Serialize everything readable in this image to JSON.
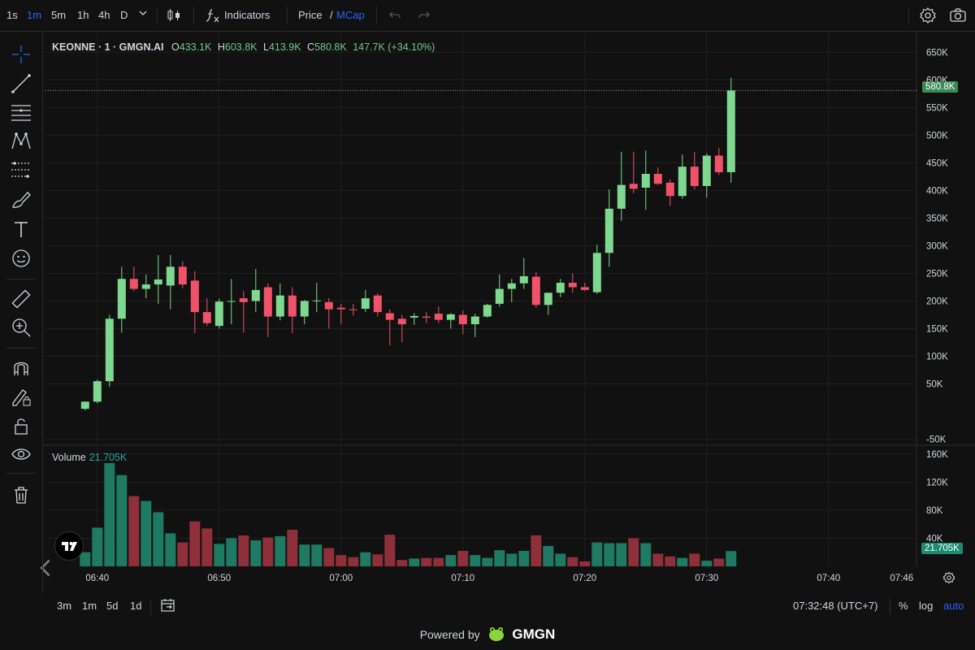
{
  "topbar": {
    "intervals": [
      "1s",
      "1m",
      "5m",
      "1h",
      "4h",
      "D"
    ],
    "active_interval": "1m",
    "indicators_label": "Indicators",
    "price_label": "Price",
    "slash": "/",
    "mcap_label": "MCap"
  },
  "legend": {
    "symbol": "KEONNE · 1 · GMGN.AI",
    "open_k": "O",
    "open_v": "433.1K",
    "high_k": "H",
    "high_v": "603.8K",
    "low_k": "L",
    "low_v": "413.9K",
    "close_k": "C",
    "close_v": "580.8K",
    "change": "147.7K (+34.10%)"
  },
  "volume_legend": {
    "label": "Volume",
    "value": "21.705K"
  },
  "price_tag": "580.8K",
  "volume_tag": "21.705K",
  "bottombar": {
    "ranges": [
      "3m",
      "1m",
      "5d",
      "1d"
    ],
    "clock": "07:32:48 (UTC+7)",
    "percent": "%",
    "log": "log",
    "auto": "auto"
  },
  "footer": {
    "powered": "Powered by",
    "brand": "GMGN"
  },
  "colors": {
    "up": "#7fd88f",
    "down": "#f0526a",
    "vol_up": "#1e7a62",
    "vol_down": "#8e2f3a",
    "accent": "#2962ff"
  },
  "chart_data": {
    "type": "candlestick",
    "price_axis_ticks": [
      "650K",
      "600K",
      "550K",
      "500K",
      "450K",
      "400K",
      "350K",
      "300K",
      "250K",
      "200K",
      "150K",
      "100K",
      "50K",
      "-50K"
    ],
    "volume_axis_ticks": [
      "160K",
      "120K",
      "80K",
      "40K"
    ],
    "time_axis_ticks": [
      "06:40",
      "06:50",
      "07:00",
      "07:10",
      "07:20",
      "07:30",
      "07:40",
      "07:46"
    ],
    "price_ylim": [
      -50000,
      650000
    ],
    "volume_ylim": [
      0,
      160000
    ],
    "last_price": 580800,
    "candles": [
      {
        "t": "06:39",
        "o": 5000,
        "h": 18000,
        "l": 2000,
        "c": 18000,
        "v": 20000
      },
      {
        "t": "06:40",
        "o": 18000,
        "h": 58000,
        "l": 15000,
        "c": 55000,
        "v": 55000
      },
      {
        "t": "06:41",
        "o": 55000,
        "h": 175000,
        "l": 45000,
        "c": 168000,
        "v": 147000
      },
      {
        "t": "06:42",
        "o": 168000,
        "h": 262000,
        "l": 143000,
        "c": 240000,
        "v": 130000
      },
      {
        "t": "06:43",
        "o": 240000,
        "h": 262000,
        "l": 218000,
        "c": 222000,
        "v": 100000
      },
      {
        "t": "06:44",
        "o": 222000,
        "h": 248000,
        "l": 205000,
        "c": 230000,
        "v": 93000
      },
      {
        "t": "06:45",
        "o": 230000,
        "h": 283000,
        "l": 195000,
        "c": 239000,
        "v": 77000
      },
      {
        "t": "06:46",
        "o": 228000,
        "h": 283000,
        "l": 185000,
        "c": 262000,
        "v": 47000
      },
      {
        "t": "06:47",
        "o": 262000,
        "h": 272000,
        "l": 223000,
        "c": 230000,
        "v": 34000
      },
      {
        "t": "06:48",
        "o": 237000,
        "h": 254000,
        "l": 142000,
        "c": 180000,
        "v": 64000
      },
      {
        "t": "06:49",
        "o": 180000,
        "h": 205000,
        "l": 155000,
        "c": 160000,
        "v": 54000
      },
      {
        "t": "06:50",
        "o": 155000,
        "h": 204000,
        "l": 150000,
        "c": 199000,
        "v": 32000
      },
      {
        "t": "06:51",
        "o": 199000,
        "h": 240000,
        "l": 158000,
        "c": 200000,
        "v": 40000
      },
      {
        "t": "06:52",
        "o": 205000,
        "h": 218000,
        "l": 143000,
        "c": 198000,
        "v": 44000
      },
      {
        "t": "06:53",
        "o": 200000,
        "h": 258000,
        "l": 180000,
        "c": 220000,
        "v": 37000
      },
      {
        "t": "06:54",
        "o": 225000,
        "h": 232000,
        "l": 135000,
        "c": 172000,
        "v": 41000
      },
      {
        "t": "06:55",
        "o": 172000,
        "h": 232000,
        "l": 165000,
        "c": 210000,
        "v": 43000
      },
      {
        "t": "06:56",
        "o": 210000,
        "h": 225000,
        "l": 142000,
        "c": 172000,
        "v": 52000
      },
      {
        "t": "06:57",
        "o": 172000,
        "h": 202000,
        "l": 158000,
        "c": 200000,
        "v": 31000
      },
      {
        "t": "06:58",
        "o": 200000,
        "h": 233000,
        "l": 180000,
        "c": 201000,
        "v": 31000
      },
      {
        "t": "06:59",
        "o": 198000,
        "h": 205000,
        "l": 150000,
        "c": 185000,
        "v": 26000
      },
      {
        "t": "07:00",
        "o": 188000,
        "h": 195000,
        "l": 158000,
        "c": 185000,
        "v": 16000
      },
      {
        "t": "07:01",
        "o": 185000,
        "h": 195000,
        "l": 174000,
        "c": 184000,
        "v": 13000
      },
      {
        "t": "07:02",
        "o": 186000,
        "h": 220000,
        "l": 180000,
        "c": 205000,
        "v": 20000
      },
      {
        "t": "07:03",
        "o": 210000,
        "h": 214000,
        "l": 172000,
        "c": 180000,
        "v": 17000
      },
      {
        "t": "07:04",
        "o": 178000,
        "h": 185000,
        "l": 120000,
        "c": 166000,
        "v": 45000
      },
      {
        "t": "07:05",
        "o": 168000,
        "h": 175000,
        "l": 125000,
        "c": 158000,
        "v": 9000
      },
      {
        "t": "07:06",
        "o": 170000,
        "h": 178000,
        "l": 157000,
        "c": 173000,
        "v": 11000
      },
      {
        "t": "07:07",
        "o": 172000,
        "h": 180000,
        "l": 160000,
        "c": 170000,
        "v": 12000
      },
      {
        "t": "07:08",
        "o": 177000,
        "h": 190000,
        "l": 160000,
        "c": 166000,
        "v": 12000
      },
      {
        "t": "07:09",
        "o": 166000,
        "h": 178000,
        "l": 150000,
        "c": 176000,
        "v": 16000
      },
      {
        "t": "07:10",
        "o": 175000,
        "h": 183000,
        "l": 140000,
        "c": 158000,
        "v": 22000
      },
      {
        "t": "07:11",
        "o": 158000,
        "h": 177000,
        "l": 135000,
        "c": 172000,
        "v": 16000
      },
      {
        "t": "07:12",
        "o": 172000,
        "h": 195000,
        "l": 170000,
        "c": 193000,
        "v": 12000
      },
      {
        "t": "07:13",
        "o": 195000,
        "h": 248000,
        "l": 190000,
        "c": 222000,
        "v": 23000
      },
      {
        "t": "07:14",
        "o": 222000,
        "h": 240000,
        "l": 198000,
        "c": 232000,
        "v": 18000
      },
      {
        "t": "07:15",
        "o": 232000,
        "h": 278000,
        "l": 222000,
        "c": 245000,
        "v": 22000
      },
      {
        "t": "07:16",
        "o": 244000,
        "h": 252000,
        "l": 188000,
        "c": 193000,
        "v": 44000
      },
      {
        "t": "07:17",
        "o": 193000,
        "h": 215000,
        "l": 175000,
        "c": 215000,
        "v": 29000
      },
      {
        "t": "07:18",
        "o": 215000,
        "h": 240000,
        "l": 207000,
        "c": 233000,
        "v": 18000
      },
      {
        "t": "07:19",
        "o": 233000,
        "h": 250000,
        "l": 215000,
        "c": 225000,
        "v": 13000
      },
      {
        "t": "07:20",
        "o": 225000,
        "h": 233000,
        "l": 218000,
        "c": 220000,
        "v": 7000
      },
      {
        "t": "07:21",
        "o": 216000,
        "h": 302000,
        "l": 213000,
        "c": 287000,
        "v": 34000
      },
      {
        "t": "07:22",
        "o": 287000,
        "h": 402000,
        "l": 262000,
        "c": 367000,
        "v": 33000
      },
      {
        "t": "07:23",
        "o": 367000,
        "h": 470000,
        "l": 345000,
        "c": 410000,
        "v": 33000
      },
      {
        "t": "07:24",
        "o": 412000,
        "h": 470000,
        "l": 395000,
        "c": 403000,
        "v": 40000
      },
      {
        "t": "07:25",
        "o": 405000,
        "h": 472000,
        "l": 365000,
        "c": 430000,
        "v": 33000
      },
      {
        "t": "07:26",
        "o": 430000,
        "h": 442000,
        "l": 410000,
        "c": 412000,
        "v": 18000
      },
      {
        "t": "07:27",
        "o": 414000,
        "h": 420000,
        "l": 372000,
        "c": 390000,
        "v": 14000
      },
      {
        "t": "07:28",
        "o": 390000,
        "h": 465000,
        "l": 385000,
        "c": 443000,
        "v": 12000
      },
      {
        "t": "07:29",
        "o": 443000,
        "h": 470000,
        "l": 402000,
        "c": 408000,
        "v": 18000
      },
      {
        "t": "07:30",
        "o": 408000,
        "h": 467000,
        "l": 387000,
        "c": 463000,
        "v": 8000
      },
      {
        "t": "07:31",
        "o": 463000,
        "h": 477000,
        "l": 428000,
        "c": 433000,
        "v": 11000
      },
      {
        "t": "07:32",
        "o": 433100,
        "h": 603800,
        "l": 413900,
        "c": 580800,
        "v": 21705
      }
    ]
  }
}
